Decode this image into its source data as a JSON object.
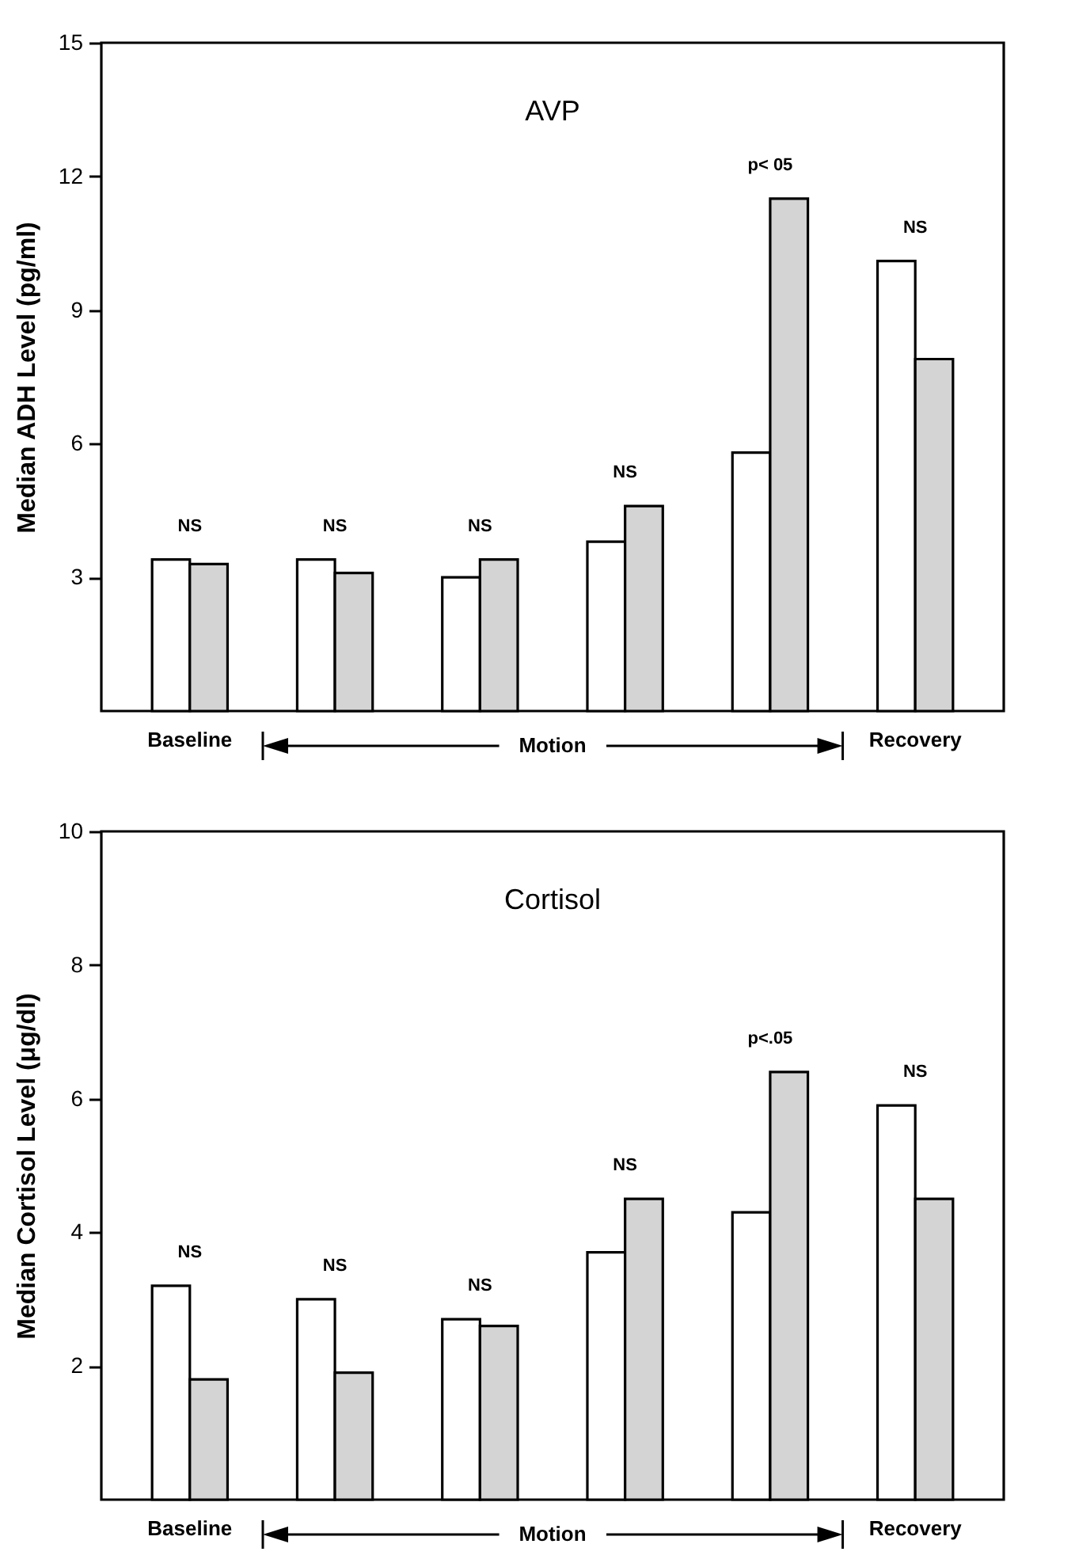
{
  "chart_data": [
    {
      "type": "bar",
      "title": "AVP",
      "ylabel": "Median ADH Level (pg/ml)",
      "categories": [
        "Baseline",
        null,
        null,
        null,
        null,
        "Recovery"
      ],
      "series": [
        {
          "color": "#ffffff",
          "values": [
            3.4,
            3.4,
            3.0,
            3.8,
            5.8,
            10.1
          ]
        },
        {
          "color": "#d4d4d4",
          "values": [
            3.3,
            3.1,
            3.4,
            4.6,
            11.5,
            7.9
          ]
        }
      ],
      "ylim": [
        0,
        15
      ],
      "yticks": [
        3,
        6,
        9,
        12,
        15
      ],
      "grid": false,
      "legend": false,
      "annotations": [
        "NS",
        "NS",
        "NS",
        "NS",
        "p< 05",
        "NS",
        "Motion"
      ]
    },
    {
      "type": "bar",
      "title": "Cortisol",
      "ylabel": "Median Cortisol Level (μg/dl)",
      "categories": [
        "Baseline",
        null,
        null,
        null,
        null,
        "Recovery"
      ],
      "series": [
        {
          "color": "#ffffff",
          "values": [
            3.2,
            3.0,
            2.7,
            3.7,
            4.3,
            5.9
          ]
        },
        {
          "color": "#d4d4d4",
          "values": [
            1.8,
            1.9,
            2.6,
            4.5,
            6.4,
            4.5
          ]
        }
      ],
      "ylim": [
        0,
        10
      ],
      "yticks": [
        2,
        4,
        6,
        8,
        10
      ],
      "grid": false,
      "legend": false,
      "annotations": [
        "NS",
        "NS",
        "NS",
        "NS",
        "p<.05",
        "NS",
        "Motion"
      ]
    }
  ]
}
